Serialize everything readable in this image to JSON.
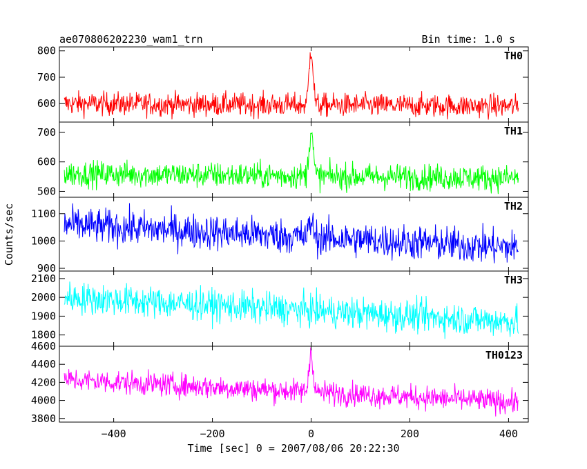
{
  "header": {
    "title": "ae070806202230_wam1_trn",
    "bin_time": "Bin time: 1.0 s"
  },
  "axes": {
    "xlabel": "Time [sec] 0 = 2007/08/06 20:22:30",
    "ylabel": "Counts/sec"
  },
  "chart_data": {
    "type": "line",
    "x_range": [
      -510,
      440
    ],
    "x_ticks": [
      -400,
      -200,
      0,
      200,
      400
    ],
    "x_tick_labels": [
      "−400",
      "−200",
      "0",
      "200",
      "400"
    ],
    "x_data_range": [
      -500,
      420
    ],
    "bin_time_s": 1.0,
    "panels": [
      {
        "name": "TH0",
        "color": "#ff0000",
        "ylim": [
          530,
          815
        ],
        "yticks": [
          600,
          700,
          800
        ],
        "ytick_labels": [
          "600",
          "700",
          "800"
        ],
        "baseline": [
          [
            -500,
            600
          ],
          [
            420,
            590
          ]
        ],
        "noise": 22,
        "peak": {
          "x": 0,
          "height": 215,
          "width": 4
        }
      },
      {
        "name": "TH1",
        "color": "#00ff00",
        "ylim": [
          480,
          735
        ],
        "yticks": [
          500,
          600,
          700
        ],
        "ytick_labels": [
          "500",
          "600",
          "700"
        ],
        "baseline": [
          [
            -500,
            560
          ],
          [
            420,
            545
          ]
        ],
        "noise": 22,
        "peak": {
          "x": 0,
          "height": 160,
          "width": 4
        }
      },
      {
        "name": "TH2",
        "color": "#0000ff",
        "ylim": [
          890,
          1160
        ],
        "yticks": [
          900,
          1000,
          1100
        ],
        "ytick_labels": [
          "900",
          "1000",
          "1100"
        ],
        "baseline": [
          [
            -500,
            1060
          ],
          [
            420,
            975
          ]
        ],
        "noise": 32,
        "peak": {
          "x": 0,
          "height": 60,
          "width": 4
        }
      },
      {
        "name": "TH3",
        "color": "#00ffff",
        "ylim": [
          1740,
          2140
        ],
        "yticks": [
          1800,
          1900,
          2000,
          2100
        ],
        "ytick_labels": [
          "1800",
          "1900",
          "2000",
          "2100"
        ],
        "baseline": [
          [
            -500,
            2000
          ],
          [
            420,
            1870
          ]
        ],
        "noise": 42,
        "peak": {
          "x": 0,
          "height": 0,
          "width": 4
        }
      },
      {
        "name": "TH0123",
        "color": "#ff00ff",
        "ylim": [
          3760,
          4600
        ],
        "yticks": [
          3800,
          4000,
          4200,
          4400,
          4600
        ],
        "ytick_labels": [
          "3800",
          "4000",
          "4200",
          "4400",
          "4600"
        ],
        "baseline": [
          [
            -500,
            4230
          ],
          [
            420,
            3980
          ]
        ],
        "noise": 65,
        "peak": {
          "x": 0,
          "height": 450,
          "width": 4
        }
      }
    ]
  }
}
